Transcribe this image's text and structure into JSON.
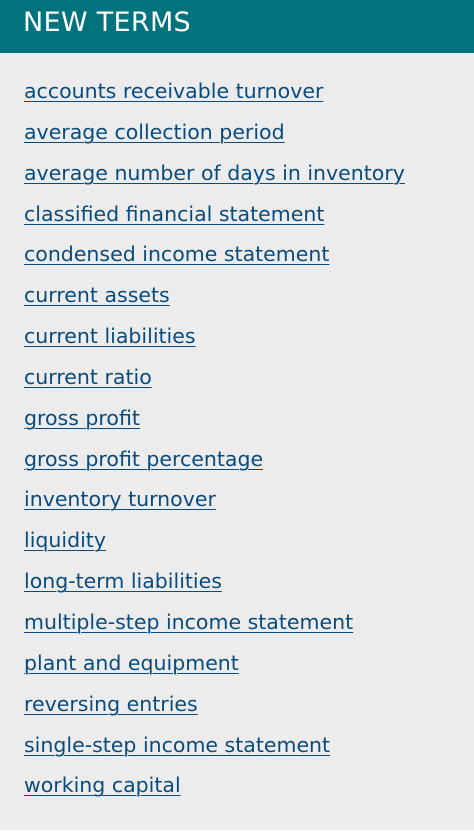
{
  "header": {
    "title": "NEW TERMS"
  },
  "terms": [
    "accounts receivable turnover",
    "average collection period",
    "average number of days in inventory",
    "classified financial statement",
    "condensed income statement",
    "current assets",
    "current liabilities",
    "current ratio",
    "gross profit",
    "gross profit percentage",
    "inventory turnover",
    "liquidity",
    "long-term liabilities",
    "multiple-step income statement",
    "plant and equipment",
    "reversing entries",
    "single-step income statement",
    "working capital"
  ],
  "colors": {
    "header_bg": "#00737c",
    "header_text": "#ffffff",
    "panel_bg": "#ececec",
    "link": "#0a4b7d"
  }
}
